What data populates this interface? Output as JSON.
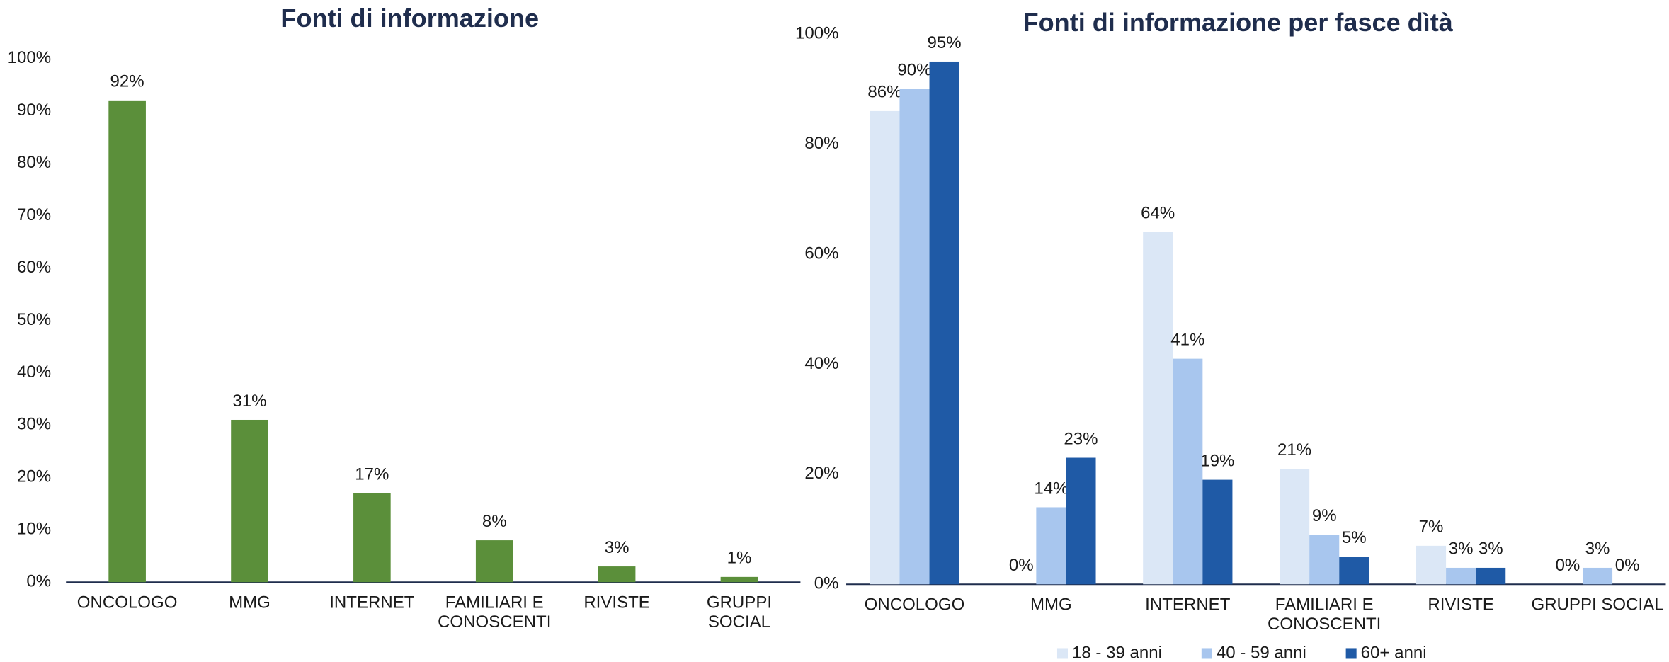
{
  "chart_data": [
    {
      "type": "bar",
      "title": "Fonti di informazione",
      "categories": [
        "ONCOLOGO",
        "MMG",
        "INTERNET",
        "FAMILIARI E\nCONOSCENTI",
        "RIVISTE",
        "GRUPPI\nSOCIAL"
      ],
      "values": [
        92,
        31,
        17,
        8,
        3,
        1
      ],
      "value_labels": [
        "92%",
        "31%",
        "17%",
        "8%",
        "3%",
        "1%"
      ],
      "color": "#5b8f3a",
      "ylim": [
        0,
        100
      ],
      "yticks": [
        {
          "value": 0,
          "label": "0%"
        },
        {
          "value": 10,
          "label": "10%"
        },
        {
          "value": 20,
          "label": "20%"
        },
        {
          "value": 30,
          "label": "30%"
        },
        {
          "value": 40,
          "label": "40%"
        },
        {
          "value": 50,
          "label": "50%"
        },
        {
          "value": 60,
          "label": "60%"
        },
        {
          "value": 70,
          "label": "70%"
        },
        {
          "value": 80,
          "label": "80%"
        },
        {
          "value": 90,
          "label": "90%"
        },
        {
          "value": 100,
          "label": "100%"
        }
      ],
      "grid": false
    },
    {
      "type": "bar",
      "title": "Fonti di informazione per fasce dìtà",
      "categories": [
        "ONCOLOGO",
        "MMG",
        "INTERNET",
        "FAMILIARI E\nCONOSCENTI",
        "RIVISTE",
        "GRUPPI SOCIAL"
      ],
      "series": [
        {
          "name": "18 - 39 anni",
          "color": "#dbe7f6",
          "values": [
            86,
            0,
            64,
            21,
            7,
            0
          ],
          "value_labels": [
            "86%",
            "0%",
            "64%",
            "21%",
            "7%",
            "0%"
          ]
        },
        {
          "name": "40 - 59 anni",
          "color": "#a8c6ee",
          "values": [
            90,
            14,
            41,
            9,
            3,
            3
          ],
          "value_labels": [
            "90%",
            "14%",
            "41%",
            "9%",
            "3%",
            "3%"
          ]
        },
        {
          "name": "60+ anni",
          "color": "#1f5aa6",
          "values": [
            95,
            23,
            19,
            5,
            3,
            0
          ],
          "value_labels": [
            "95%",
            "23%",
            "19%",
            "5%",
            "3%",
            "0%"
          ]
        }
      ],
      "ylim": [
        0,
        100
      ],
      "yticks": [
        {
          "value": 0,
          "label": "0%"
        },
        {
          "value": 20,
          "label": "20%"
        },
        {
          "value": 40,
          "label": "40%"
        },
        {
          "value": 60,
          "label": "60%"
        },
        {
          "value": 80,
          "label": "80%"
        },
        {
          "value": 100,
          "label": "100%"
        }
      ],
      "grid": false,
      "legend": "bottom"
    }
  ]
}
